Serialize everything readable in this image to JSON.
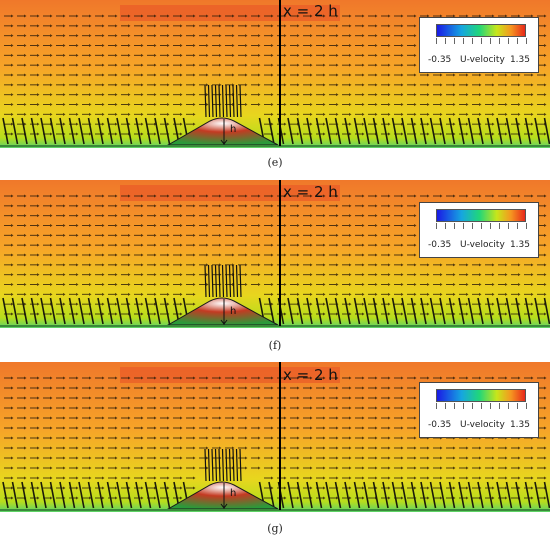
{
  "panels": [
    {
      "id": "e",
      "caption": "(e)",
      "marker_label": "x = 2 h",
      "height_label": "h",
      "legend": {
        "min": "-0.35",
        "max": "1.35",
        "title": "U-velocity"
      }
    },
    {
      "id": "f",
      "caption": "(f)",
      "marker_label": "x = 2 h",
      "height_label": "h",
      "legend": {
        "min": "-0.35",
        "max": "1.35",
        "title": "U-velocity"
      }
    },
    {
      "id": "g",
      "caption": "(g)",
      "marker_label": "x = 2 h",
      "height_label": "h",
      "legend": {
        "min": "-0.35",
        "max": "1.35",
        "title": "U-velocity"
      }
    }
  ],
  "colorscale": {
    "name": "U-velocity",
    "range": [
      -0.35,
      1.35
    ],
    "colors": [
      "#1a1ae6",
      "#16a6e0",
      "#20d67a",
      "#c8e61a",
      "#f59620",
      "#e8281a"
    ]
  }
}
